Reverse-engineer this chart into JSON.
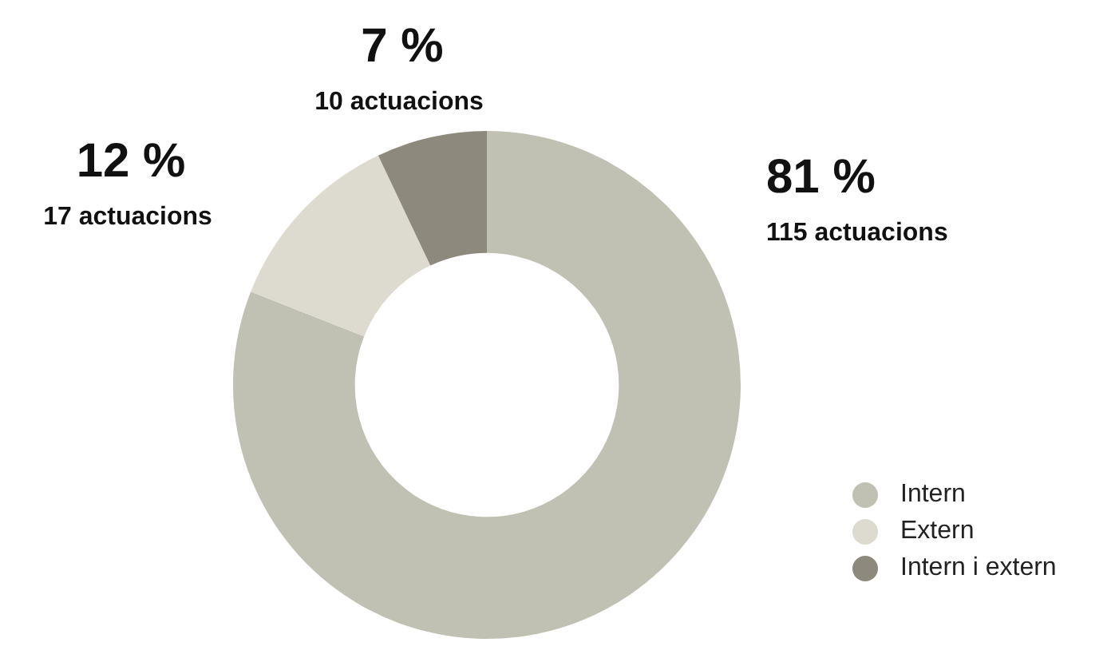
{
  "chart_data": {
    "type": "donut",
    "categories": [
      "Intern",
      "Extern",
      "Intern i extern"
    ],
    "values": [
      115,
      17,
      10
    ],
    "colors": [
      "#c0c0b3",
      "#dddbd0",
      "#8e897d"
    ],
    "value_labels": [
      "115 actuacions",
      "17 actuacions",
      "10 actuacions"
    ],
    "annotations": [
      {
        "text": "81 %",
        "x": "Intern"
      },
      {
        "text": "12 %",
        "x": "Extern"
      },
      {
        "text": "7 %",
        "x": "Intern i extern"
      }
    ],
    "legend": "bottom right"
  }
}
